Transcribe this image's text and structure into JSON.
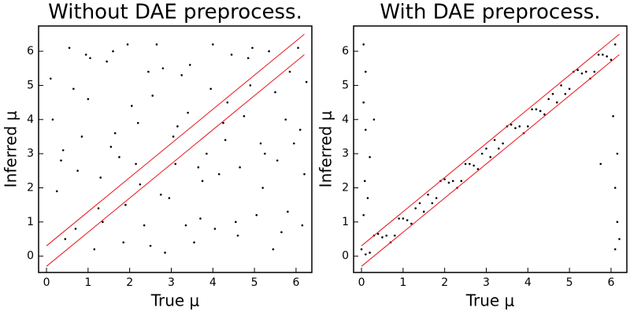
{
  "chart_data": [
    {
      "type": "scatter",
      "title": "Without DAE preprocess.",
      "x_label": "True μ",
      "y_label": "Inferred μ",
      "xlim": [
        -0.19,
        6.38
      ],
      "ylim": [
        -0.48,
        6.74
      ],
      "xticks": [
        0,
        1,
        2,
        3,
        4,
        5,
        6
      ],
      "yticks": [
        0,
        1,
        2,
        3,
        4,
        5,
        6
      ],
      "series": [
        {
          "type": "scatter",
          "color": "#000000",
          "x": [
            0.1,
            0.4,
            0.7,
            1.0,
            1.3,
            1.6,
            1.9,
            2.2,
            2.5,
            2.8,
            3.1,
            3.4,
            3.7,
            4.0,
            4.3,
            4.6,
            4.9,
            5.2,
            5.5,
            5.8,
            6.1,
            0.25,
            0.55,
            0.85,
            1.15,
            1.45,
            1.75,
            2.05,
            2.35,
            2.65,
            2.95,
            3.25,
            3.55,
            3.85,
            4.15,
            4.45,
            4.75,
            5.05,
            5.35,
            5.65,
            5.95,
            6.25,
            0.15,
            0.45,
            0.75,
            1.05,
            1.35,
            1.65,
            1.95,
            2.25,
            2.55,
            2.85,
            3.15,
            3.45,
            3.75,
            4.05,
            4.35,
            4.65,
            4.95,
            5.25,
            5.55,
            5.85,
            6.15,
            0.35,
            0.65,
            0.95,
            1.25,
            1.55,
            1.85,
            2.15,
            2.45,
            2.75,
            3.05,
            3.35,
            3.65,
            3.95,
            4.25,
            4.55,
            4.85,
            5.15,
            5.45,
            5.75,
            6.05,
            6.2
          ],
          "values": [
            5.2,
            3.1,
            0.8,
            4.6,
            2.3,
            6.0,
            1.5,
            3.9,
            0.3,
            5.5,
            2.7,
            4.2,
            1.1,
            6.2,
            3.4,
            0.6,
            5.0,
            2.0,
            4.8,
            1.3,
            3.7,
            1.9,
            6.1,
            3.5,
            0.2,
            5.7,
            2.9,
            4.4,
            0.9,
            6.2,
            1.7,
            5.3,
            0.4,
            3.0,
            2.4,
            5.9,
            4.1,
            1.2,
            6.0,
            0.7,
            3.3,
            5.1,
            4.0,
            0.5,
            2.5,
            5.8,
            1.0,
            3.6,
            6.2,
            2.1,
            4.7,
            0.1,
            3.8,
            5.6,
            2.2,
            0.8,
            4.5,
            2.6,
            6.1,
            3.0,
            2.8,
            5.4,
            0.9,
            2.8,
            4.9,
            5.9,
            1.4,
            3.2,
            0.4,
            2.7,
            5.4,
            1.8,
            3.5,
            0.9,
            2.6,
            4.9,
            3.9,
            1.0,
            5.8,
            3.3,
            0.2,
            4.0,
            6.1,
            2.4
          ]
        },
        {
          "type": "line",
          "color": "#e8141a",
          "x": [
            0,
            6.2
          ],
          "values": [
            0.3,
            6.5
          ]
        },
        {
          "type": "line",
          "color": "#e8141a",
          "x": [
            0,
            6.2
          ],
          "values": [
            -0.3,
            5.9
          ]
        }
      ]
    },
    {
      "type": "scatter",
      "title": "With DAE preprocess.",
      "x_label": "True μ",
      "y_label": "Inferred μ",
      "xlim": [
        -0.19,
        6.38
      ],
      "ylim": [
        -0.48,
        6.74
      ],
      "xticks": [
        0,
        1,
        2,
        3,
        4,
        5,
        6
      ],
      "yticks": [
        0,
        1,
        2,
        3,
        4,
        5,
        6
      ],
      "series": [
        {
          "type": "scatter",
          "color": "#000000",
          "x": [
            0.0,
            0.2,
            0.4,
            0.6,
            0.8,
            1.0,
            1.2,
            1.4,
            1.6,
            1.8,
            2.0,
            2.2,
            2.4,
            2.6,
            2.8,
            3.0,
            3.2,
            3.4,
            3.6,
            3.8,
            4.0,
            4.2,
            4.4,
            4.6,
            4.8,
            5.0,
            5.2,
            5.4,
            5.6,
            5.8,
            6.0,
            0.1,
            0.3,
            0.5,
            0.7,
            0.9,
            1.1,
            1.3,
            1.5,
            1.7,
            1.9,
            2.1,
            2.3,
            2.5,
            2.7,
            2.9,
            3.1,
            3.3,
            3.5,
            3.7,
            3.9,
            4.1,
            4.3,
            4.5,
            4.7,
            4.9,
            5.1,
            5.3,
            5.5,
            5.7,
            5.9,
            6.1,
            0.05,
            0.1,
            0.05,
            0.1,
            0.08,
            0.05,
            0.3,
            0.2,
            6.1,
            6.15,
            6.1,
            6.05,
            6.2,
            5.75,
            6.15,
            0.15
          ],
          "values": [
            0.2,
            0.1,
            0.65,
            0.6,
            0.6,
            1.1,
            0.95,
            1.55,
            1.8,
            1.7,
            2.25,
            2.2,
            2.2,
            2.7,
            2.55,
            3.15,
            3.4,
            3.3,
            3.85,
            3.8,
            3.8,
            4.3,
            4.15,
            4.75,
            5.0,
            4.9,
            5.45,
            5.4,
            5.4,
            5.9,
            5.75,
            0.05,
            0.6,
            0.55,
            0.4,
            1.1,
            1.05,
            1.4,
            1.3,
            1.55,
            2.2,
            2.15,
            2.0,
            2.7,
            2.65,
            3.0,
            2.9,
            3.15,
            3.8,
            3.75,
            3.6,
            4.3,
            4.25,
            4.6,
            4.5,
            4.75,
            5.4,
            5.35,
            5.2,
            5.9,
            5.85,
            6.2,
            6.2,
            5.4,
            4.5,
            3.7,
            2.2,
            1.2,
            4.0,
            2.9,
            0.2,
            1.0,
            2.0,
            4.1,
            0.5,
            2.7,
            3.0,
            1.7
          ]
        },
        {
          "type": "line",
          "color": "#e8141a",
          "x": [
            0,
            6.2
          ],
          "values": [
            0.3,
            6.5
          ]
        },
        {
          "type": "line",
          "color": "#e8141a",
          "x": [
            0,
            6.2
          ],
          "values": [
            -0.3,
            5.9
          ]
        }
      ]
    }
  ]
}
